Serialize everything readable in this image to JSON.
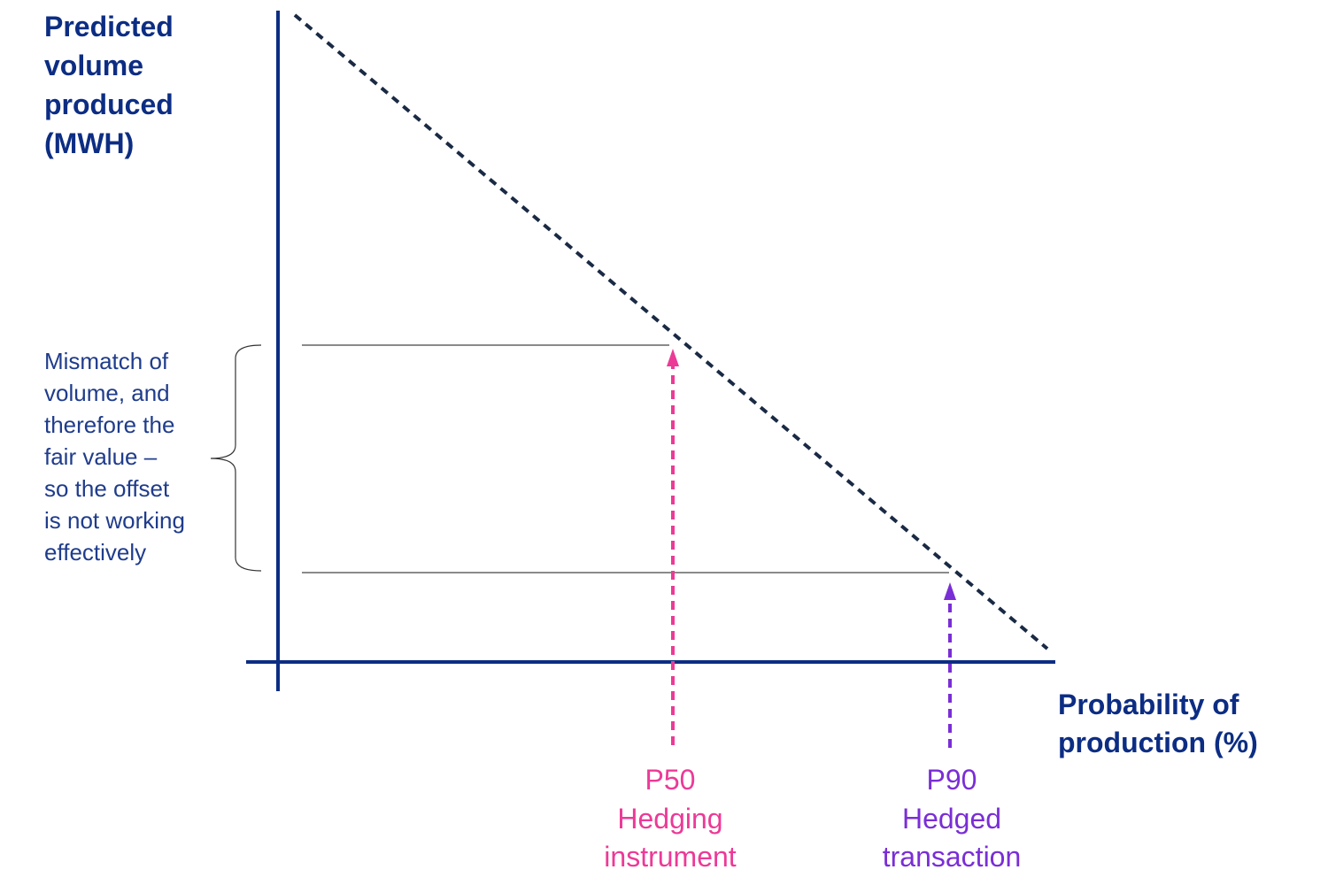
{
  "y_axis_label": [
    "Predicted",
    "volume",
    "produced",
    "(MWH)"
  ],
  "x_axis_label": [
    "Probability of",
    "production (%)"
  ],
  "annotation": [
    "Mismatch of",
    "volume, and",
    "therefore the",
    "fair value –",
    "so the offset",
    "is not working",
    "effectively"
  ],
  "markers": [
    {
      "label": "P50",
      "lines": [
        "Hedging",
        "instrument"
      ]
    },
    {
      "label": "P90",
      "lines": [
        "Hedged",
        "transaction"
      ]
    }
  ]
}
